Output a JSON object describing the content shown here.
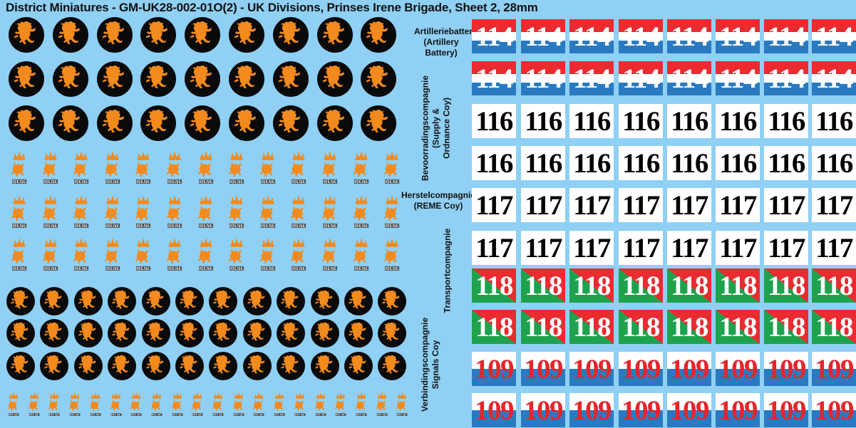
{
  "title": "District Miniatures - GM-UK28-002-01O(2) - UK Divisions, Prinses Irene Brigade, Sheet 2, 28mm",
  "colors": {
    "background": "#8fd0f4",
    "lion_orange": "#f28a1e",
    "disc_black": "#0a0a0a",
    "red": "#ea2b30",
    "blue": "#2a7ac2",
    "green": "#1fa24e",
    "white": "#ffffff"
  },
  "icons": {
    "lion_disc": "rampant-lion-icon",
    "irene_crest": "crowned-lion-irene-icon"
  },
  "crest_text": "IRENE",
  "labels": {
    "artillery": [
      "Artilleriebatterij",
      "(Artillery",
      "Battery)"
    ],
    "supply": [
      "Bevoorradingscompagnie",
      "(Supply &",
      "Ordnance Coy)"
    ],
    "reme": [
      "Herstelcompagnie",
      "(REME Coy)"
    ],
    "transport": [
      "Transportcompagnie"
    ],
    "signals": [
      "Verbindingscompagnie",
      "Signals Coy"
    ]
  },
  "decal_rows": [
    {
      "number": "114",
      "style": "red-blue",
      "count": 8
    },
    {
      "number": "114",
      "style": "red-blue",
      "count": 8
    },
    {
      "number": "116",
      "style": "white",
      "count": 8
    },
    {
      "number": "116",
      "style": "white",
      "count": 8
    },
    {
      "number": "117",
      "style": "white",
      "count": 8
    },
    {
      "number": "117",
      "style": "white",
      "count": 8
    },
    {
      "number": "118",
      "style": "green-red",
      "count": 8
    },
    {
      "number": "118",
      "style": "green-red",
      "count": 8
    },
    {
      "number": "109",
      "style": "white-blue",
      "count": 8
    },
    {
      "number": "109",
      "style": "white-blue",
      "count": 8
    }
  ],
  "left_rows": [
    {
      "kind": "lion-disc",
      "count": 9
    },
    {
      "kind": "lion-disc",
      "count": 9
    },
    {
      "kind": "lion-disc",
      "count": 9
    },
    {
      "kind": "irene-crest",
      "count": 13
    },
    {
      "kind": "irene-crest",
      "count": 13
    },
    {
      "kind": "irene-crest",
      "count": 13
    },
    {
      "kind": "lion-disc",
      "count": 12
    },
    {
      "kind": "lion-disc",
      "count": 12
    },
    {
      "kind": "lion-disc",
      "count": 12
    },
    {
      "kind": "irene-crest",
      "count": 20
    }
  ]
}
